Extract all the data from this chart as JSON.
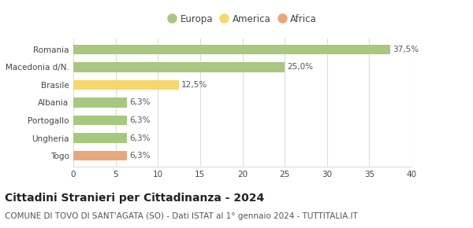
{
  "categories": [
    "Togo",
    "Ungheria",
    "Portogallo",
    "Albania",
    "Brasile",
    "Macedonia d/N.",
    "Romania"
  ],
  "values": [
    6.3,
    6.3,
    6.3,
    6.3,
    12.5,
    25.0,
    37.5
  ],
  "labels": [
    "6,3%",
    "6,3%",
    "6,3%",
    "6,3%",
    "12,5%",
    "25,0%",
    "37,5%"
  ],
  "colors": [
    "#e8a87c",
    "#a8c880",
    "#a8c880",
    "#a8c880",
    "#f5d76e",
    "#a8c880",
    "#a8c880"
  ],
  "legend": [
    {
      "label": "Europa",
      "color": "#a8c880"
    },
    {
      "label": "America",
      "color": "#f5d76e"
    },
    {
      "label": "Africa",
      "color": "#e8a87c"
    }
  ],
  "title": "Cittadini Stranieri per Cittadinanza - 2024",
  "subtitle": "COMUNE DI TOVO DI SANT'AGATA (SO) - Dati ISTAT al 1° gennaio 2024 - TUTTITALIA.IT",
  "xlim": [
    0,
    40
  ],
  "xticks": [
    0,
    5,
    10,
    15,
    20,
    25,
    30,
    35,
    40
  ],
  "background_color": "#ffffff",
  "grid_color": "#dddddd",
  "bar_height": 0.55,
  "title_fontsize": 10,
  "subtitle_fontsize": 7.5,
  "label_fontsize": 7.5,
  "tick_fontsize": 7.5,
  "legend_fontsize": 8.5
}
